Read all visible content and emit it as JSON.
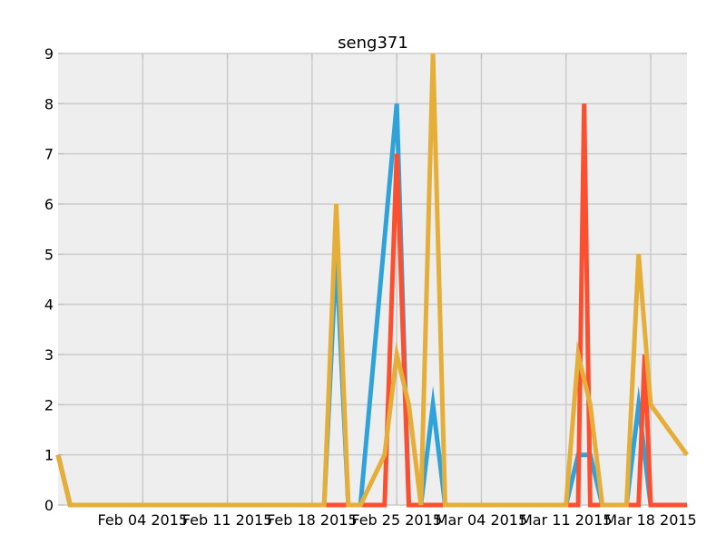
{
  "chart_data": {
    "type": "line",
    "title": "seng371",
    "xlabel": "",
    "ylabel": "",
    "x_type": "date",
    "xlim": [
      "2015-01-28",
      "2015-03-21"
    ],
    "ylim": [
      0,
      9
    ],
    "yticks": [
      0,
      1,
      2,
      3,
      4,
      5,
      6,
      7,
      8,
      9
    ],
    "xticks": [
      {
        "date": "2015-02-04",
        "label": "Feb 04 2015"
      },
      {
        "date": "2015-02-11",
        "label": "Feb 11 2015"
      },
      {
        "date": "2015-02-18",
        "label": "Feb 18 2015"
      },
      {
        "date": "2015-02-25",
        "label": "Feb 25 2015"
      },
      {
        "date": "2015-03-04",
        "label": "Mar 04 2015"
      },
      {
        "date": "2015-03-11",
        "label": "Mar 11 2015"
      },
      {
        "date": "2015-03-18",
        "label": "Mar 18 2015"
      }
    ],
    "grid": true,
    "style": {
      "plot_background": "#eeeeee",
      "grid_color": "#cbcbcb",
      "tick_color": "#bcbcbc"
    },
    "series": [
      {
        "color": "#30a2da",
        "points": [
          [
            "2015-01-28",
            1
          ],
          [
            "2015-01-29",
            0
          ],
          [
            "2015-02-19",
            0
          ],
          [
            "2015-02-20",
            5
          ],
          [
            "2015-02-21",
            0
          ],
          [
            "2015-02-22",
            0
          ],
          [
            "2015-02-25",
            8
          ],
          [
            "2015-02-26",
            0
          ],
          [
            "2015-02-27",
            0
          ],
          [
            "2015-02-28",
            2
          ],
          [
            "2015-03-01",
            0
          ],
          [
            "2015-03-11",
            0
          ],
          [
            "2015-03-12",
            1
          ],
          [
            "2015-03-13",
            1
          ],
          [
            "2015-03-14",
            0
          ],
          [
            "2015-03-16",
            0
          ],
          [
            "2015-03-17",
            2
          ],
          [
            "2015-03-18",
            0
          ],
          [
            "2015-03-21",
            0
          ]
        ]
      },
      {
        "color": "#fc4f30",
        "points": [
          [
            "2015-01-28",
            1
          ],
          [
            "2015-01-29",
            0
          ],
          [
            "2015-02-24",
            0
          ],
          [
            "2015-02-25",
            7
          ],
          [
            "2015-02-26",
            0
          ],
          [
            "2015-03-12",
            0
          ],
          [
            "2015-03-12.5",
            8
          ],
          [
            "2015-03-13",
            0
          ],
          [
            "2015-03-17",
            0
          ],
          [
            "2015-03-17.5",
            3
          ],
          [
            "2015-03-18",
            0
          ],
          [
            "2015-03-21",
            0
          ]
        ]
      },
      {
        "color": "#e5ae38",
        "points": [
          [
            "2015-01-28",
            1
          ],
          [
            "2015-01-29",
            0
          ],
          [
            "2015-02-19",
            0
          ],
          [
            "2015-02-20",
            6
          ],
          [
            "2015-02-21",
            0
          ],
          [
            "2015-02-22",
            0
          ],
          [
            "2015-02-24",
            1
          ],
          [
            "2015-02-25",
            3
          ],
          [
            "2015-02-26",
            2
          ],
          [
            "2015-02-27",
            0
          ],
          [
            "2015-02-28",
            9
          ],
          [
            "2015-03-01",
            0
          ],
          [
            "2015-03-11",
            0
          ],
          [
            "2015-03-12",
            3
          ],
          [
            "2015-03-13",
            2
          ],
          [
            "2015-03-14",
            0
          ],
          [
            "2015-03-16",
            0
          ],
          [
            "2015-03-17",
            5
          ],
          [
            "2015-03-18",
            2
          ],
          [
            "2015-03-21",
            1
          ]
        ]
      }
    ]
  }
}
